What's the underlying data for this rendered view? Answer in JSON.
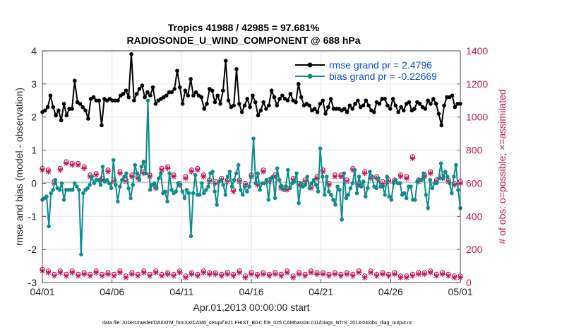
{
  "chart_data": {
    "type": "line",
    "title": "Tropics 41988 / 42985 = 97.681%",
    "subtitle": "RADIOSONDE_U_WIND_COMPONENT @ 688 hPa",
    "xlabel": "Apr.01,2013 00:00:00 start",
    "ylabel": "rmse and bias (model - observation)",
    "ylabel_right": "# of obs: o=possible; ×=assimilated",
    "footer": "data file: /Users/raeder/DAI/ATM_forcXX/CAM6_setup/f.e21.FHIST_BGC.f09_025.CAM6assim.011/Diags_NTrS_2013-04/obs_diag_output.nc",
    "x_range": [
      0,
      30
    ],
    "ylim": [
      -3,
      4
    ],
    "ylim_right": [
      0,
      1400
    ],
    "x_tick_labels": [
      "04/01",
      "04/06",
      "04/11",
      "04/16",
      "04/21",
      "04/26",
      "05/01"
    ],
    "y_tick_labels": [
      "-3",
      "-2",
      "-1",
      "0",
      "1",
      "2",
      "3",
      "4"
    ],
    "y_right_tick_labels": [
      "0",
      "200",
      "400",
      "600",
      "800",
      "1000",
      "1200",
      "1400"
    ],
    "legend_position": "top-right",
    "series": [
      {
        "name": "rmse grand pr = 2.4796",
        "color": "#000000",
        "axis": "left",
        "marker": "filled-circle",
        "values": [
          2.15,
          2.2,
          2.3,
          2.65,
          2.3,
          2.05,
          2.2,
          1.9,
          2.4,
          2.05,
          2.25,
          2.25,
          3.1,
          2.45,
          2.4,
          2.3,
          2.2,
          1.95,
          2.55,
          2.6,
          2.5,
          2.5,
          1.75,
          2.55,
          2.5,
          2.55,
          2.5,
          2.5,
          2.5,
          2.65,
          2.7,
          2.8,
          2.6,
          3.9,
          2.5,
          2.7,
          2.85,
          2.95,
          2.6,
          2.75,
          2.65,
          2.9,
          2.4,
          2.5,
          2.55,
          2.6,
          2.65,
          2.75,
          2.75,
          2.85,
          3.4,
          2.9,
          2.4,
          2.8,
          2.65,
          3.15,
          2.65,
          2.75,
          2.65,
          2.6,
          2.25,
          2.4,
          2.85,
          2.8,
          2.45,
          2.65,
          2.4,
          2.8,
          3.7,
          2.5,
          2.3,
          2.35,
          3.45,
          2.4,
          2.15,
          2.35,
          2.55,
          2.3,
          2.65,
          2.45,
          2.05,
          2.2,
          2.45,
          2.25,
          2.35,
          2.8,
          2.6,
          2.35,
          2.55,
          2.65,
          2.55,
          2.5,
          2.7,
          2.5,
          2.45,
          3.0,
          2.6,
          2.35,
          2.4,
          2.35,
          2.2,
          2.25,
          2.15,
          2.4,
          2.5,
          2.1,
          2.3,
          2.55,
          2.25,
          2.25,
          2.25,
          2.2,
          2.25,
          2.15,
          2.35,
          2.25,
          2.4,
          2.5,
          2.3,
          2.35,
          2.5,
          2.35,
          2.2,
          2.15,
          2.45,
          2.4,
          2.55,
          2.55,
          2.35,
          2.25,
          2.55,
          2.35,
          2.15,
          2.3,
          2.2,
          2.4,
          2.45,
          2.2,
          2.25,
          2.45,
          2.4,
          2.3,
          2.25,
          2.5,
          2.4,
          2.55,
          2.4,
          2.1,
          1.75,
          2.35,
          2.6,
          2.6,
          2.65,
          2.3,
          2.4,
          2.4
        ]
      },
      {
        "name": "bias grand pr = -0.22669",
        "color": "#0e8c8c",
        "axis": "left",
        "marker": "filled-circle",
        "values": [
          -0.5,
          -0.45,
          -0.4,
          -1.3,
          -0.3,
          -0.2,
          0.1,
          -0.15,
          -0.2,
          0.0,
          -0.5,
          -0.2,
          -0.2,
          -0.2,
          -0.2,
          0.0,
          -0.1,
          -0.2,
          -2.15,
          -0.3,
          -0.2,
          -0.15,
          -0.05,
          0.2,
          0.0,
          0.1,
          0.1,
          -0.05,
          0.5,
          0.05,
          0.1,
          0.0,
          -0.15,
          0.7,
          -0.05,
          -0.55,
          -0.1,
          0.1,
          0.2,
          0.3,
          -0.15,
          -0.45,
          -0.05,
          0.55,
          0.3,
          0.1,
          0.5,
          0.65,
          0.3,
          2.5,
          -0.2,
          -0.05,
          0.0,
          -0.15,
          0.15,
          0.3,
          -0.3,
          -0.25,
          -0.55,
          0.3,
          -0.2,
          -0.3,
          -0.25,
          0.0,
          -0.05,
          -0.25,
          -0.45,
          -0.2,
          -0.3,
          -1.6,
          -0.3,
          0.25,
          -0.35,
          -0.35,
          0.0,
          -0.3,
          -0.2,
          -0.1,
          0.3,
          0.35,
          -0.25,
          -0.65,
          0.05,
          0.1,
          -0.05,
          -0.35,
          0.2,
          0.35,
          -0.1,
          0.1,
          0.3,
          0.55,
          -0.2,
          -0.35,
          -0.1,
          -0.25,
          -0.1,
          0.2,
          1.35,
          0.0,
          0.3,
          -0.2,
          0.0,
          0.0,
          0.1,
          -0.5,
          0.15,
          0.2,
          -0.45,
          0.45,
          0.1,
          -0.1,
          -0.2,
          -0.1,
          0.4,
          -0.15,
          0.0,
          0.05,
          0.3,
          -0.6,
          0.0,
          -0.1,
          -0.05,
          0.2,
          -0.15,
          0.0,
          0.1,
          -0.05,
          -0.25,
          1.05,
          0.2,
          -0.35,
          0.2,
          -0.25,
          -0.35,
          -0.5,
          -0.65,
          -0.1,
          -0.2,
          -1.1,
          0.3,
          -0.45,
          -0.35,
          -0.15,
          0.0,
          0.4,
          -0.3,
          0.2,
          -0.1,
          0.05,
          -0.4,
          -0.15,
          0.35,
          0.2,
          -0.1,
          -0.15,
          0.15,
          -0.1,
          -0.1,
          -0.35,
          0.2,
          -0.4,
          -0.5,
          0.0,
          0.1,
          0.0,
          0.0,
          -0.35,
          -0.3,
          -0.45,
          -0.1,
          -0.1,
          -0.5,
          -0.5,
          0.05,
          0.1,
          0.1,
          0.3,
          -0.35,
          -0.75,
          0.1,
          -0.15,
          0.0,
          0.0,
          0.15,
          0.6,
          0.15,
          0.35,
          0.2,
          0.0,
          -0.3,
          0.2,
          0.55,
          -0.2,
          -0.75
        ]
      }
    ],
    "obs_counts": {
      "color": "#c0145a",
      "axis": "right",
      "possible_high": [
        690,
        680,
        610,
        690,
        730,
        720,
        720,
        700,
        650,
        660,
        630,
        680,
        620,
        670,
        620,
        650,
        640,
        670,
        650,
        580,
        690,
        700,
        650,
        600,
        640,
        680,
        690,
        650,
        620,
        610,
        630,
        620,
        560,
        620,
        600,
        650,
        600,
        680,
        620,
        650,
        580,
        570,
        630,
        600,
        620,
        580,
        640,
        680,
        600,
        650,
        650,
        620,
        690,
        600,
        670,
        640,
        640,
        610,
        620,
        620,
        650,
        640,
        760,
        620,
        650,
        670,
        620,
        640,
        620,
        600,
        610
      ],
      "possible_low": [
        80,
        70,
        50,
        70,
        50,
        70,
        50,
        60,
        50,
        70,
        50,
        60,
        50,
        70,
        40,
        60,
        50,
        70,
        50,
        70,
        50,
        60,
        50,
        70,
        40,
        60,
        50,
        70,
        60,
        60,
        50,
        60,
        50,
        70,
        40,
        60,
        50,
        60,
        50,
        60,
        50,
        70,
        40,
        60,
        50,
        70,
        60,
        60,
        50,
        60,
        50,
        60,
        50,
        70,
        40,
        70,
        50,
        60,
        50,
        60,
        40,
        40,
        50,
        60,
        60,
        70,
        50,
        60,
        50,
        40,
        40
      ],
      "assimilated_high": [
        680,
        670,
        600,
        680,
        720,
        710,
        710,
        690,
        640,
        650,
        620,
        670,
        610,
        660,
        610,
        640,
        630,
        660,
        640,
        570,
        680,
        690,
        640,
        590,
        630,
        670,
        680,
        640,
        610,
        600,
        620,
        610,
        550,
        610,
        590,
        640,
        590,
        670,
        610,
        640,
        570,
        560,
        620,
        590,
        610,
        570,
        630,
        670,
        590,
        640,
        640,
        610,
        680,
        590,
        660,
        630,
        630,
        600,
        610,
        610,
        640,
        630,
        750,
        610,
        640,
        660,
        610,
        630,
        610,
        590,
        600
      ],
      "assimilated_low": [
        70,
        60,
        40,
        60,
        40,
        60,
        40,
        50,
        40,
        60,
        40,
        50,
        40,
        60,
        30,
        50,
        40,
        60,
        40,
        60,
        40,
        50,
        40,
        60,
        30,
        50,
        40,
        60,
        50,
        50,
        40,
        50,
        40,
        60,
        30,
        50,
        40,
        50,
        40,
        50,
        40,
        60,
        30,
        50,
        40,
        60,
        50,
        50,
        40,
        50,
        40,
        50,
        40,
        60,
        30,
        60,
        40,
        50,
        40,
        50,
        30,
        30,
        40,
        50,
        50,
        60,
        40,
        50,
        40,
        30,
        30
      ]
    }
  }
}
